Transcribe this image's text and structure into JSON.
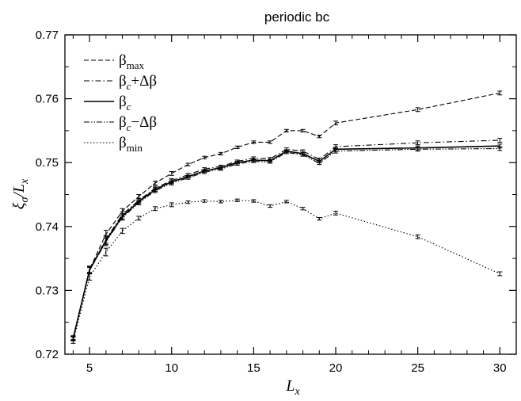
{
  "chart_data": {
    "type": "line",
    "title": "periodic bc",
    "xlabel": {
      "main": "L",
      "sub": "x"
    },
    "ylabel": {
      "parts": [
        "ξ",
        "σ",
        "/L",
        "x"
      ]
    },
    "xlim": [
      3.5,
      31
    ],
    "ylim": [
      0.72,
      0.77
    ],
    "xticks": [
      5,
      10,
      15,
      20,
      25,
      30
    ],
    "xtick_labels": [
      "5",
      "10",
      "15",
      "20",
      "25",
      "30"
    ],
    "yticks": [
      0.72,
      0.73,
      0.74,
      0.75,
      0.76,
      0.77
    ],
    "ytick_labels": [
      "0.72",
      "0.73",
      "0.74",
      "0.75",
      "0.76",
      "0.77"
    ],
    "legend_position": "top-left",
    "x": [
      4,
      5,
      6,
      7,
      8,
      9,
      10,
      11,
      12,
      13,
      14,
      15,
      16,
      17,
      18,
      19,
      20,
      25,
      30
    ],
    "series": [
      {
        "name": "β_max",
        "legend": {
          "main": "β",
          "sub": "max",
          "rest": ""
        },
        "style": "dashed",
        "values": [
          0.7226,
          0.7333,
          0.7388,
          0.7424,
          0.7447,
          0.7468,
          0.7483,
          0.7497,
          0.7508,
          0.7514,
          0.7524,
          0.7532,
          0.7532,
          0.755,
          0.755,
          0.7541,
          0.7562,
          0.7583,
          0.7609
        ],
        "errors": [
          0.0003,
          0.0005,
          0.0006,
          0.0004,
          0.0003,
          0.0003,
          0.0003,
          0.0002,
          0.0002,
          0.0002,
          0.0002,
          0.0002,
          0.0002,
          0.0002,
          0.0002,
          0.0002,
          0.0003,
          0.0003,
          0.0003
        ]
      },
      {
        "name": "β_c+Δβ",
        "legend": {
          "main": "β",
          "sub": "c",
          "rest": "+Δβ"
        },
        "style": "dashdot",
        "values": [
          0.7225,
          0.7332,
          0.738,
          0.7419,
          0.7441,
          0.746,
          0.7472,
          0.7481,
          0.749,
          0.7494,
          0.7502,
          0.7507,
          0.7506,
          0.7521,
          0.7518,
          0.7505,
          0.7525,
          0.7531,
          0.7535
        ],
        "errors": [
          0.0003,
          0.0005,
          0.0006,
          0.0004,
          0.0003,
          0.0003,
          0.0003,
          0.0002,
          0.0002,
          0.0002,
          0.0002,
          0.0002,
          0.0002,
          0.0002,
          0.0002,
          0.0002,
          0.0003,
          0.0003,
          0.0003
        ]
      },
      {
        "name": "β_c",
        "legend": {
          "main": "β",
          "sub": "c",
          "rest": ""
        },
        "style": "solid",
        "values": [
          0.7225,
          0.7332,
          0.7378,
          0.7416,
          0.7439,
          0.7458,
          0.747,
          0.7478,
          0.7487,
          0.7492,
          0.75,
          0.7504,
          0.7503,
          0.7518,
          0.7514,
          0.7502,
          0.7521,
          0.7523,
          0.7526
        ],
        "errors": [
          0.0003,
          0.0005,
          0.0006,
          0.0004,
          0.0003,
          0.0003,
          0.0003,
          0.0002,
          0.0002,
          0.0002,
          0.0002,
          0.0002,
          0.0002,
          0.0002,
          0.0002,
          0.0002,
          0.0003,
          0.0003,
          0.0003
        ]
      },
      {
        "name": "β_c−Δβ",
        "legend": {
          "main": "β",
          "sub": "c",
          "rest": "−Δβ"
        },
        "style": "dashdotdot",
        "values": [
          0.7224,
          0.7331,
          0.7376,
          0.7414,
          0.7437,
          0.7456,
          0.7468,
          0.7476,
          0.7485,
          0.749,
          0.7498,
          0.7502,
          0.7501,
          0.7516,
          0.7512,
          0.7499,
          0.7518,
          0.7521,
          0.7522
        ],
        "errors": [
          0.0003,
          0.0005,
          0.0006,
          0.0004,
          0.0003,
          0.0003,
          0.0003,
          0.0002,
          0.0002,
          0.0002,
          0.0002,
          0.0002,
          0.0002,
          0.0002,
          0.0002,
          0.0002,
          0.0003,
          0.0003,
          0.0003
        ]
      },
      {
        "name": "β_min",
        "legend": {
          "main": "β",
          "sub": "min",
          "rest": ""
        },
        "style": "dotted",
        "values": [
          0.722,
          0.7321,
          0.736,
          0.7393,
          0.7413,
          0.7428,
          0.7434,
          0.7438,
          0.744,
          0.7439,
          0.7441,
          0.744,
          0.7432,
          0.7439,
          0.7428,
          0.7412,
          0.7421,
          0.7384,
          0.7326
        ],
        "errors": [
          0.0003,
          0.0005,
          0.0006,
          0.0004,
          0.0003,
          0.0003,
          0.0003,
          0.0002,
          0.0002,
          0.0002,
          0.0002,
          0.0002,
          0.0002,
          0.0002,
          0.0002,
          0.0002,
          0.0003,
          0.0003,
          0.0003
        ]
      }
    ]
  }
}
